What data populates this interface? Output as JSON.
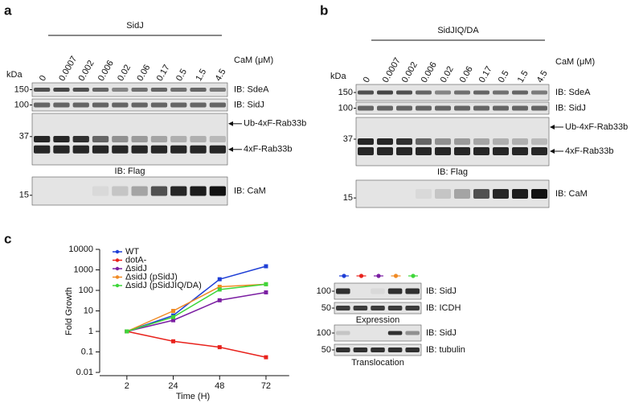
{
  "panel_a": {
    "letter": "a",
    "title": "SidJ",
    "kda": "kDa",
    "cam_label": "CaM (μM)",
    "lanes": [
      "0",
      "0.0007",
      "0.002",
      "0.006",
      "0.02",
      "0.06",
      "0.17",
      "0.5",
      "1.5",
      "4.5"
    ],
    "markers": [
      "150",
      "100",
      "37",
      "15"
    ],
    "labels": [
      "IB: SdeA",
      "IB: SidJ",
      "Ub-4xF-Rab33b",
      "4xF-Rab33b",
      "IB: Flag",
      "IB: CaM"
    ]
  },
  "panel_b": {
    "letter": "b",
    "title": "SidJIQ/DA",
    "kda": "kDa",
    "cam_label": "CaM (μM)",
    "lanes": [
      "0",
      "0.0007",
      "0.002",
      "0.006",
      "0.02",
      "0.06",
      "0.17",
      "0.5",
      "1.5",
      "4.5"
    ],
    "markers": [
      "150",
      "100",
      "37",
      "15"
    ],
    "labels": [
      "IB: SdeA",
      "IB: SidJ",
      "Ub-4xF-Rab33b",
      "4xF-Rab33b",
      "IB: Flag",
      "IB: CaM"
    ]
  },
  "panel_c": {
    "letter": "c",
    "markers": [
      "100",
      "50",
      "100",
      "50"
    ],
    "labels": [
      "IB: SidJ",
      "IB: ICDH",
      "Expression",
      "IB: SidJ",
      "IB: tubulin",
      "Translocation"
    ]
  },
  "chart_data": {
    "type": "line",
    "x_label": "Time (H)",
    "y_label": "Fold Growth",
    "categories": [
      "2",
      "24",
      "48",
      "72"
    ],
    "log_y": true,
    "ylim": [
      0.01,
      10000
    ],
    "yticks": [
      0.01,
      0.1,
      1,
      10,
      100,
      1000,
      10000
    ],
    "series": [
      {
        "name": "WT",
        "color": "#1f3fd6",
        "values": [
          1,
          6,
          350,
          1500
        ]
      },
      {
        "name": "dotA-",
        "color": "#e8221c",
        "values": [
          1,
          0.33,
          0.17,
          0.055
        ]
      },
      {
        "name": "ΔsidJ",
        "color": "#7b1fa2",
        "values": [
          1,
          3.5,
          33,
          80
        ]
      },
      {
        "name": "ΔsidJ (pSidJ)",
        "color": "#f08a24",
        "values": [
          1,
          10,
          150,
          200
        ]
      },
      {
        "name": "ΔsidJ (pSidJIQ/DA)",
        "color": "#3ed63a",
        "values": [
          1,
          5,
          110,
          200
        ]
      }
    ]
  }
}
